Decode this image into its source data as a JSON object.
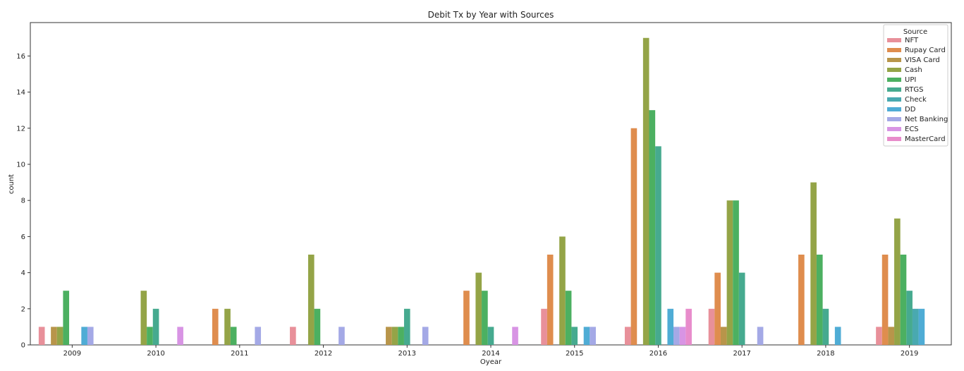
{
  "chart_data": {
    "type": "bar",
    "title": "Debit Tx by Year with Sources",
    "xlabel": "Oyear",
    "ylabel": "count",
    "ylim": [
      0,
      17.85
    ],
    "yticks": [
      0,
      2,
      4,
      6,
      8,
      10,
      12,
      14,
      16
    ],
    "grid": false,
    "legend_title": "Source",
    "legend_position": "top-right",
    "categories": [
      "2009",
      "2010",
      "2011",
      "2012",
      "2013",
      "2014",
      "2015",
      "2016",
      "2017",
      "2018",
      "2019"
    ],
    "series": [
      {
        "name": "NFT",
        "color": "#e8909a",
        "values": [
          1,
          0,
          0,
          1,
          0,
          0,
          2,
          1,
          2,
          0,
          1
        ]
      },
      {
        "name": "Rupay Card",
        "color": "#df8d4e",
        "values": [
          0,
          0,
          2,
          0,
          0,
          3,
          5,
          12,
          4,
          5,
          5
        ]
      },
      {
        "name": "VISA Card",
        "color": "#b8954a",
        "values": [
          1,
          0,
          0,
          0,
          1,
          0,
          0,
          0,
          1,
          0,
          1
        ]
      },
      {
        "name": "Cash",
        "color": "#94a447",
        "values": [
          1,
          3,
          2,
          5,
          1,
          4,
          6,
          17,
          8,
          9,
          7
        ]
      },
      {
        "name": "UPI",
        "color": "#4cb061",
        "values": [
          3,
          1,
          1,
          2,
          1,
          3,
          3,
          13,
          8,
          5,
          5
        ]
      },
      {
        "name": "RTGS",
        "color": "#46aa8f",
        "values": [
          0,
          2,
          0,
          0,
          2,
          1,
          1,
          11,
          4,
          2,
          3
        ]
      },
      {
        "name": "Check",
        "color": "#49a9b0",
        "values": [
          0,
          0,
          0,
          0,
          0,
          0,
          0,
          0,
          0,
          0,
          2
        ]
      },
      {
        "name": "DD",
        "color": "#4facd5",
        "values": [
          1,
          0,
          0,
          0,
          0,
          0,
          1,
          2,
          0,
          1,
          2
        ]
      },
      {
        "name": "Net Banking",
        "color": "#a4a9e6",
        "values": [
          1,
          0,
          1,
          1,
          1,
          0,
          1,
          1,
          1,
          0,
          0
        ]
      },
      {
        "name": "ECS",
        "color": "#d894e4",
        "values": [
          0,
          1,
          0,
          0,
          0,
          1,
          0,
          1,
          0,
          0,
          0
        ]
      },
      {
        "name": "MasterCard",
        "color": "#e88ccb",
        "values": [
          0,
          0,
          0,
          0,
          0,
          0,
          0,
          2,
          0,
          0,
          0
        ]
      }
    ]
  }
}
